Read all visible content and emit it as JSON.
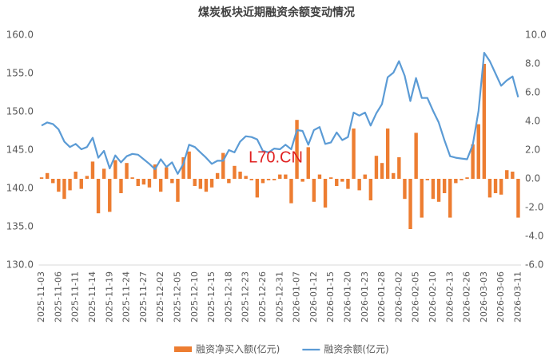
{
  "chart_data": {
    "type": "combo",
    "title": "煤炭板块近期融资余额变动情况",
    "watermark": "L70.CN",
    "categories": [
      "2025-11-03",
      null,
      null,
      "2025-11-06",
      null,
      null,
      "2025-11-11",
      null,
      null,
      "2025-11-14",
      null,
      null,
      "2025-11-19",
      null,
      null,
      "2025-11-24",
      null,
      null,
      "2025-11-27",
      null,
      null,
      "2025-12-02",
      null,
      null,
      "2025-12-05",
      null,
      null,
      "2025-12-10",
      null,
      null,
      "2025-12-15",
      null,
      null,
      "2025-12-18",
      null,
      null,
      "2025-12-23",
      null,
      null,
      "2025-12-26",
      null,
      null,
      "2025-12-31",
      null,
      null,
      "2026-01-07",
      null,
      null,
      "2026-01-12",
      null,
      null,
      "2026-01-15",
      null,
      null,
      "2026-01-20",
      null,
      null,
      "2026-01-23",
      null,
      null,
      "2026-01-28",
      null,
      null,
      "2026-02-02",
      null,
      null,
      "2026-02-05",
      null,
      null,
      "2026-02-10",
      null,
      null,
      "2026-02-13",
      null,
      null,
      "2026-02-26",
      null,
      null,
      "2026-03-03",
      null,
      null,
      "2026-03-06",
      null,
      null,
      "2026-03-11"
    ],
    "series": [
      {
        "name": "融资净买入额(亿元)",
        "type": "bar",
        "axis": "y2",
        "color": "#ed7d31",
        "values": [
          0.1,
          0.4,
          -0.3,
          -0.9,
          -1.4,
          -0.8,
          0.5,
          -0.7,
          0.2,
          1.2,
          -2.4,
          0.7,
          -2.3,
          1.3,
          -1.0,
          1.1,
          0.1,
          -0.5,
          -0.4,
          -0.6,
          1.0,
          -0.9,
          0.8,
          -0.3,
          -1.6,
          1.5,
          1.9,
          -0.5,
          -0.7,
          -0.9,
          -0.6,
          0.4,
          1.8,
          -0.3,
          0.9,
          0.5,
          0.2,
          -0.1,
          -1.3,
          -0.3,
          -0.1,
          -0.1,
          0.3,
          0.3,
          -1.7,
          4.1,
          -0.2,
          2.2,
          -1.6,
          0.3,
          -2.0,
          0.1,
          -0.5,
          -0.2,
          -0.7,
          3.5,
          -0.8,
          0.3,
          -1.5,
          1.6,
          1.1,
          3.5,
          0.4,
          1.5,
          -1.4,
          -3.5,
          3.2,
          -2.7,
          -0.1,
          -1.4,
          -1.6,
          -1.0,
          -2.7,
          -0.3,
          -0.1,
          0.1,
          2.4,
          3.8,
          8.0,
          -1.3,
          -1.0,
          -1.1,
          0.6,
          0.5,
          -2.7
        ]
      },
      {
        "name": "融资余额(亿元)",
        "type": "line",
        "axis": "y",
        "color": "#5b9bd5",
        "values": [
          148.2,
          148.6,
          148.4,
          147.7,
          146.1,
          145.4,
          145.8,
          145.1,
          145.4,
          146.6,
          144.0,
          144.9,
          142.6,
          144.3,
          143.4,
          144.2,
          144.5,
          144.4,
          143.8,
          143.2,
          142.5,
          143.8,
          142.8,
          143.4,
          141.9,
          143.2,
          145.7,
          145.4,
          144.7,
          144.0,
          143.2,
          143.6,
          143.6,
          145.0,
          144.7,
          146.1,
          146.8,
          146.7,
          146.4,
          144.9,
          144.7,
          145.2,
          145.1,
          145.7,
          145.1,
          147.6,
          147.5,
          145.7,
          147.6,
          148.0,
          145.8,
          146.0,
          147.3,
          146.3,
          146.7,
          149.9,
          149.5,
          149.9,
          148.2,
          149.8,
          151.0,
          154.5,
          155.1,
          156.6,
          154.7,
          151.4,
          154.4,
          151.8,
          151.8,
          150.1,
          148.6,
          146.3,
          144.2,
          144.0,
          143.9,
          143.8,
          145.7,
          150.1,
          157.7,
          156.6,
          155.0,
          153.4,
          154.1,
          154.6,
          151.9
        ]
      }
    ],
    "ylim": [
      130,
      160
    ],
    "yticks": [
      {
        "value": 130,
        "label": "130.0"
      },
      {
        "value": 135,
        "label": "135.0"
      },
      {
        "value": 140,
        "label": "140.0"
      },
      {
        "value": 145,
        "label": "145.0"
      },
      {
        "value": 150,
        "label": "150.0"
      },
      {
        "value": 155,
        "label": "155.0"
      },
      {
        "value": 160,
        "label": "160.0"
      }
    ],
    "y2lim": [
      -6,
      10
    ],
    "y2ticks": [
      {
        "value": -6,
        "label": "-6.0"
      },
      {
        "value": -4,
        "label": "-4.0"
      },
      {
        "value": -2,
        "label": "-2.0"
      },
      {
        "value": 0,
        "label": "0.0"
      },
      {
        "value": 2,
        "label": "2.0"
      },
      {
        "value": 4,
        "label": "4.0"
      },
      {
        "value": 6,
        "label": "6.0"
      },
      {
        "value": 8,
        "label": "8.0"
      },
      {
        "value": 10,
        "label": "10.0"
      }
    ],
    "grid": false,
    "legend": "bottom"
  }
}
